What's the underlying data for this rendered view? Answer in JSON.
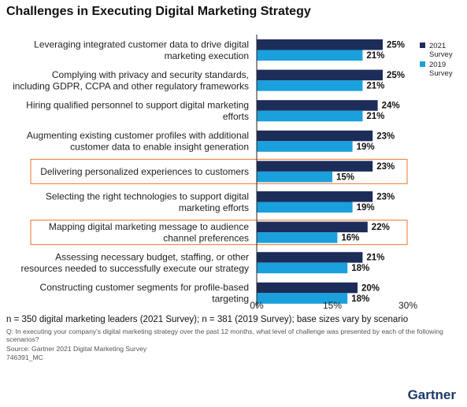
{
  "title": "Challenges in Executing Digital Marketing Strategy",
  "colors": {
    "series_2021": "#1c2d5a",
    "series_2019": "#1aa0dc",
    "highlight": "#f08a4b"
  },
  "chart_data": {
    "type": "bar",
    "orientation": "horizontal",
    "categories": [
      [
        "Leveraging integrated customer data to drive digital",
        "marketing execution"
      ],
      [
        "Complying with privacy and security standards,",
        "including GDPR, CCPA and other regulatory frameworks"
      ],
      [
        "Hiring qualified personnel to support digital marketing",
        "efforts"
      ],
      [
        "Augmenting existing customer profiles with additional",
        "customer data to enable insight generation"
      ],
      [
        "Delivering personalized experiences to customers"
      ],
      [
        "Selecting the right technologies to support digital",
        "marketing efforts"
      ],
      [
        "Mapping digital marketing message to audience",
        "channel preferences"
      ],
      [
        "Assessing necessary budget, staffing, or other",
        "resources needed to successfully execute our strategy"
      ],
      [
        "Constructing customer segments for profile-based",
        "targeting"
      ]
    ],
    "series": [
      {
        "name": "2021 Survey",
        "values": [
          25,
          25,
          24,
          23,
          23,
          23,
          22,
          21,
          20
        ]
      },
      {
        "name": "2019 Survey",
        "values": [
          21,
          21,
          21,
          19,
          15,
          19,
          16,
          18,
          18
        ]
      }
    ],
    "highlighted": [
      4,
      6
    ],
    "xlim": [
      0,
      30
    ],
    "xticks": [
      "0%",
      "15%",
      "30%"
    ],
    "value_suffix": "%",
    "legend": [
      [
        "2021",
        "Survey"
      ],
      [
        "2019",
        "Survey"
      ]
    ],
    "legend_position": "right",
    "grid": false
  },
  "notes": {
    "main": "n = 350 digital marketing leaders (2021 Survey); n = 381 (2019 Survey); base sizes vary by scenario",
    "question": "Q: In executing your company's digital marketing strategy over the past 12 months, what level of challenge was presented by each of the following scenarios?",
    "source": "Source: Gartner 2021 Digital Marketing Survey",
    "id": "746391_MC"
  },
  "logo": "Gartner"
}
